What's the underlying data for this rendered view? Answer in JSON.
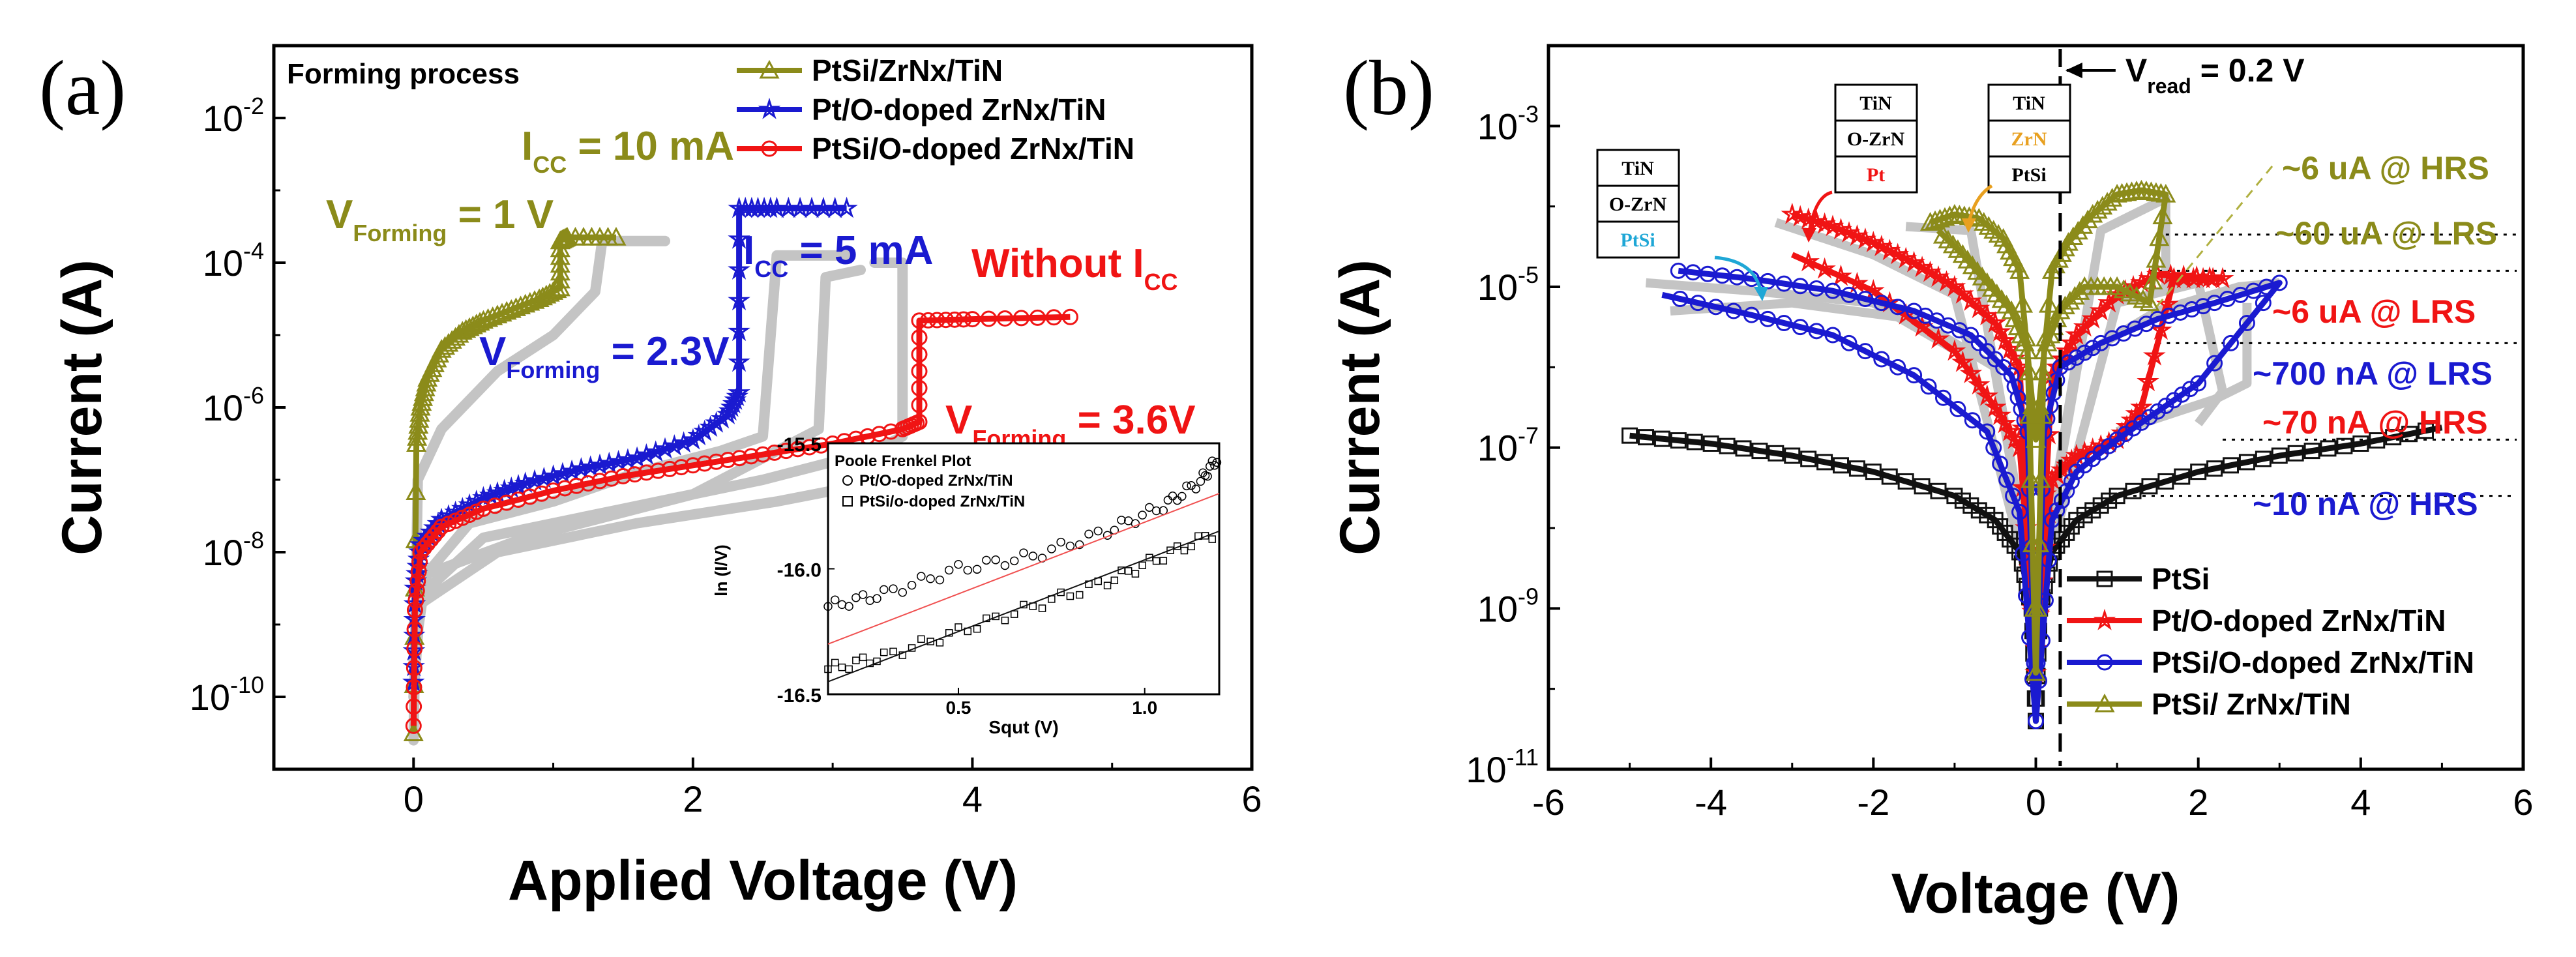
{
  "colors": {
    "olive": "#8b8b1a",
    "blue": "#1a1ad0",
    "red": "#f01414",
    "black": "#111111",
    "gray": "#c4c4c4",
    "cyan": "#1fa7d6",
    "orange": "#e8a020"
  },
  "chart_data": [
    {
      "panel": "(a)",
      "type": "line",
      "title": "Forming process",
      "xlabel": "Applied Voltage (V)",
      "ylabel": "Current (A)",
      "xlim": [
        -1,
        6
      ],
      "ylim_log10": [
        -11,
        -1
      ],
      "x_ticks": [
        "0",
        "2",
        "4",
        "6"
      ],
      "y_ticks": [
        {
          "base": "10",
          "exp": "-2"
        },
        {
          "base": "10",
          "exp": "-4"
        },
        {
          "base": "10",
          "exp": "-6"
        },
        {
          "base": "10",
          "exp": "-8"
        },
        {
          "base": "10",
          "exp": "-10"
        }
      ],
      "legend": [
        "PtSi/ZrNx/TiN",
        "Pt/O-doped ZrNx/TiN",
        "PtSi/O-doped ZrNx/TiN"
      ],
      "series": [
        {
          "name": "PtSi/ZrNx/TiN",
          "color": "olive",
          "marker": "triangle",
          "x": [
            0,
            0.02,
            0.05,
            0.1,
            0.2,
            0.35,
            0.5,
            0.7,
            0.9,
            1.05,
            1.05,
            1.1,
            1.45
          ],
          "y_log10": [
            -10.5,
            -6.5,
            -6.0,
            -5.6,
            -5.2,
            -4.95,
            -4.8,
            -4.65,
            -4.5,
            -4.35,
            -3.7,
            -3.65,
            -3.65
          ]
        },
        {
          "name": "Pt/O-doped ZrNx/TiN",
          "color": "blue",
          "marker": "star",
          "x": [
            0,
            0.01,
            0.05,
            0.2,
            0.5,
            0.8,
            1.2,
            1.6,
            2.0,
            2.25,
            2.33,
            2.33,
            2.6,
            3.1
          ],
          "y_log10": [
            -9.8,
            -8.5,
            -7.9,
            -7.55,
            -7.25,
            -7.05,
            -6.85,
            -6.7,
            -6.45,
            -6.1,
            -5.8,
            -3.25,
            -3.25,
            -3.25
          ]
        },
        {
          "name": "PtSi/O-doped ZrNx/TiN",
          "color": "red",
          "marker": "circle",
          "x": [
            0,
            0.01,
            0.05,
            0.2,
            0.5,
            1.0,
            1.5,
            2.0,
            2.5,
            3.0,
            3.5,
            3.62,
            3.62,
            4.0,
            4.7
          ],
          "y_log10": [
            -10.4,
            -8.8,
            -8.0,
            -7.65,
            -7.4,
            -7.15,
            -6.95,
            -6.8,
            -6.65,
            -6.5,
            -6.3,
            -6.2,
            -4.8,
            -4.78,
            -4.75
          ]
        }
      ],
      "annotations": [
        {
          "id": "icc10",
          "base": "I",
          "sub": "CC",
          "rest": " = 10 mA",
          "color": "olive"
        },
        {
          "id": "vf1",
          "base": "V",
          "sub": "Forming",
          "rest": " = 1 V",
          "color": "olive"
        },
        {
          "id": "icc5",
          "base": "I",
          "sub": "CC",
          "rest": " = 5 mA",
          "color": "blue"
        },
        {
          "id": "vf23",
          "base": "V",
          "sub": "Forming",
          "rest": " = 2.3V",
          "color": "blue"
        },
        {
          "id": "noicc",
          "base": "Without I",
          "sub": "CC",
          "rest": "",
          "color": "red"
        },
        {
          "id": "vf36",
          "base": "V",
          "sub": "Forming",
          "rest": " = 3.6V",
          "color": "red"
        }
      ],
      "inset": {
        "title": "Poole Frenkel Plot",
        "xlabel": "Squt (V)",
        "ylabel": "ln (I/V)",
        "xlim": [
          0.15,
          1.2
        ],
        "ylim": [
          -16.5,
          -15.5
        ],
        "x_ticks": [
          "0.5",
          "1.0"
        ],
        "y_ticks": [
          "-15.5",
          "-16.0",
          "-16.5"
        ],
        "legend": [
          "Pt/O-doped ZrNx/TiN",
          "PtSi/o-doped ZrNx/TiN"
        ],
        "series": [
          {
            "name": "Pt/O-doped ZrNx/TiN",
            "x": [
              0.15,
              0.3,
              0.5,
              0.7,
              0.9,
              1.05,
              1.15,
              1.2
            ],
            "y": [
              -16.15,
              -16.1,
              -16.0,
              -15.95,
              -15.85,
              -15.75,
              -15.65,
              -15.55
            ],
            "fit": [
              [
                0.15,
                -16.3
              ],
              [
                1.2,
                -15.7
              ]
            ]
          },
          {
            "name": "PtSi/o-doped ZrNx/TiN",
            "x": [
              0.15,
              0.3,
              0.5,
              0.7,
              0.9,
              1.05,
              1.2
            ],
            "y": [
              -16.4,
              -16.35,
              -16.25,
              -16.15,
              -16.05,
              -15.95,
              -15.85
            ],
            "fit": [
              [
                0.15,
                -16.45
              ],
              [
                1.2,
                -15.85
              ]
            ]
          }
        ]
      }
    },
    {
      "panel": "(b)",
      "type": "line",
      "xlabel": "Voltage (V)",
      "ylabel": "Current (A)",
      "xlim": [
        -6,
        6
      ],
      "ylim_log10": [
        -11,
        -2
      ],
      "x_ticks": [
        "-6",
        "-4",
        "-2",
        "0",
        "2",
        "4",
        "6"
      ],
      "y_ticks": [
        {
          "base": "10",
          "exp": "-3"
        },
        {
          "base": "10",
          "exp": "-5"
        },
        {
          "base": "10",
          "exp": "-7"
        },
        {
          "base": "10",
          "exp": "-9"
        },
        {
          "base": "10",
          "exp": "-11"
        }
      ],
      "vread": {
        "base": "V",
        "sub": "read",
        "rest": " = 0.2 V",
        "x": 0.3
      },
      "legend": [
        "PtSi",
        "Pt/O-doped ZrNx/TiN",
        "PtSi/O-doped ZrNx/TiN",
        "PtSi/ ZrNx/TiN"
      ],
      "series": [
        {
          "name": "PtSi",
          "color": "black",
          "marker": "square",
          "x": [
            -5,
            -4,
            -3,
            -2,
            -1,
            -0.5,
            -0.2,
            -0.05,
            0,
            0.05,
            0.2,
            0.5,
            1,
            2,
            3,
            4,
            5
          ],
          "y_log10": [
            -6.85,
            -6.95,
            -7.1,
            -7.3,
            -7.6,
            -7.9,
            -8.3,
            -9.0,
            -10.4,
            -9.0,
            -8.3,
            -7.9,
            -7.6,
            -7.3,
            -7.1,
            -6.95,
            -6.75
          ]
        },
        {
          "name": "Pt/O-doped ZrNx/TiN",
          "color": "red",
          "marker": "star",
          "x": [
            -3,
            -2.5,
            -2,
            -1.5,
            -1,
            -0.5,
            -0.2,
            0,
            0.2,
            0.5,
            1,
            1.5,
            2.3,
            1.7,
            1.3,
            1,
            0.5,
            0.2,
            0,
            -0.2,
            -0.5,
            -1,
            -2,
            -3
          ],
          "y_log10": [
            -4.1,
            -4.25,
            -4.45,
            -4.7,
            -5.0,
            -5.45,
            -6.0,
            -9.8,
            -6.1,
            -5.6,
            -5.1,
            -4.85,
            -4.9,
            -4.9,
            -6.5,
            -6.9,
            -7.1,
            -7.4,
            -9.5,
            -7.0,
            -6.5,
            -5.8,
            -5.05,
            -4.6
          ]
        },
        {
          "name": "PtSi/O-doped ZrNx/TiN",
          "color": "blue",
          "marker": "circle",
          "x": [
            -4.4,
            -3.5,
            -2.5,
            -1.5,
            -0.8,
            -0.3,
            -0.1,
            0,
            0.1,
            0.3,
            0.8,
            1.5,
            2.2,
            3.0,
            2.0,
            1.5,
            1.0,
            0.5,
            0.2,
            0,
            -0.2,
            -0.6,
            -1.5,
            -2.5,
            -3.5,
            -4.6
          ],
          "y_log10": [
            -4.8,
            -4.9,
            -5.05,
            -5.3,
            -5.6,
            -6.1,
            -6.8,
            -10.4,
            -6.8,
            -6.0,
            -5.7,
            -5.4,
            -5.2,
            -4.95,
            -6.2,
            -6.55,
            -6.9,
            -7.3,
            -7.9,
            -10.4,
            -7.8,
            -6.8,
            -6.1,
            -5.6,
            -5.35,
            -5.1
          ]
        },
        {
          "name": "PtSi/ ZrNx/TiN",
          "color": "olive",
          "marker": "triangle",
          "x": [
            -1.3,
            -1.0,
            -0.7,
            -0.4,
            -0.2,
            0,
            0.2,
            0.4,
            0.7,
            1.0,
            1.3,
            1.6,
            1.4,
            1.0,
            0.6,
            0.3,
            0.1,
            0,
            -0.1,
            -0.3,
            -0.6,
            -0.9,
            -1.2
          ],
          "y_log10": [
            -4.2,
            -4.1,
            -4.15,
            -4.4,
            -4.8,
            -6.9,
            -4.8,
            -4.45,
            -4.1,
            -3.85,
            -3.8,
            -3.85,
            -5.2,
            -5.0,
            -5.0,
            -5.3,
            -5.8,
            -9.8,
            -5.8,
            -5.3,
            -4.95,
            -4.6,
            -4.3
          ]
        }
      ],
      "level_labels": [
        {
          "text": "~6 uA @ HRS",
          "color": "olive"
        },
        {
          "text": "~60 uA @ LRS",
          "color": "olive"
        },
        {
          "text": "~6 uA @ LRS",
          "color": "red"
        },
        {
          "text": "~700 nA @ LRS",
          "color": "blue"
        },
        {
          "text": "~70 nA @ HRS",
          "color": "red"
        },
        {
          "text": "~10 nA @ HRS",
          "color": "blue"
        }
      ],
      "stacks": [
        {
          "id": "s1",
          "layers": [
            "TiN",
            "O-ZrN",
            "PtSi"
          ],
          "hl": 2,
          "hl_color": "cyan"
        },
        {
          "id": "s2",
          "layers": [
            "TiN",
            "O-ZrN",
            "Pt"
          ],
          "hl": 2,
          "hl_color": "red"
        },
        {
          "id": "s3",
          "layers": [
            "TiN",
            "ZrN",
            "PtSi"
          ],
          "hl": 1,
          "hl_color": "orange"
        }
      ]
    }
  ]
}
